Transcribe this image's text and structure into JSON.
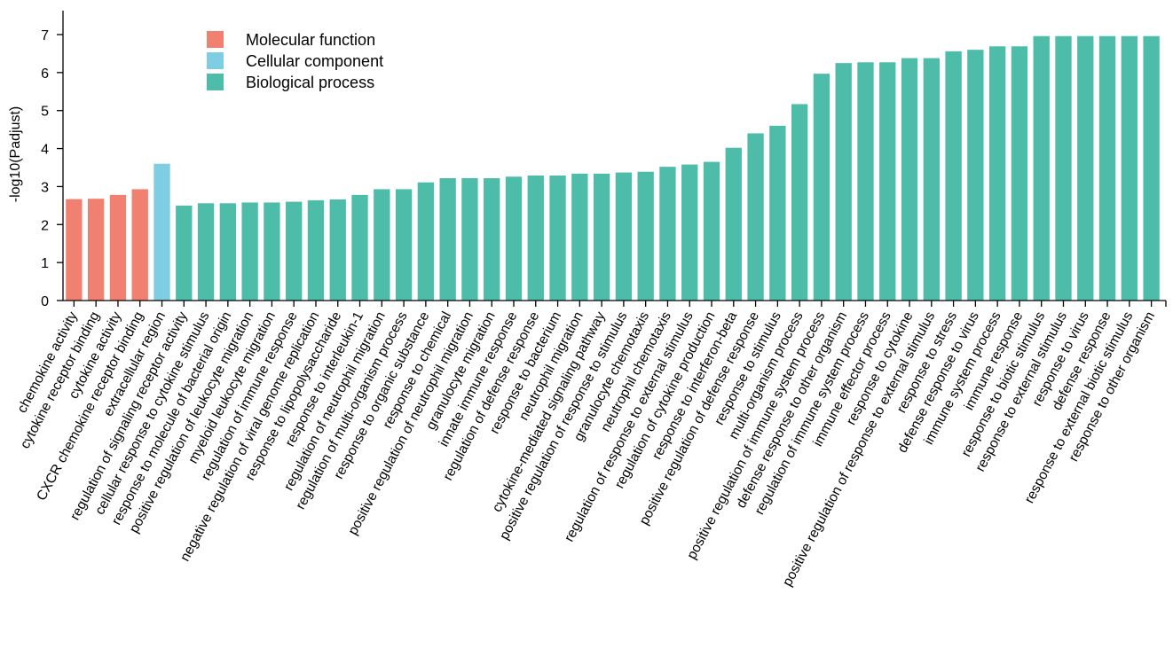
{
  "chart_data": {
    "type": "bar",
    "ylabel": "-log10(Padjust)",
    "xlabel": "",
    "title": "",
    "ylim": [
      0,
      7.5
    ],
    "yticks": [
      0,
      1,
      2,
      3,
      4,
      5,
      6,
      7
    ],
    "grid": false,
    "legend_position": "top-left",
    "legend": [
      {
        "name": "Molecular function",
        "color": "#F08070"
      },
      {
        "name": "Cellular component",
        "color": "#7FCDE3"
      },
      {
        "name": "Biological process",
        "color": "#4DBDAA"
      }
    ],
    "categories": [
      "chemokine activity",
      "cytokine receptor binding",
      "cytokine activity",
      "CXCR chemokine receptor binding",
      "extracellular region",
      "regulation of signaling receptor activity",
      "cellular response to cytokine stimulus",
      "response to molecule of bacterial origin",
      "positive regulation of leukocyte migration",
      "myeloid leukocyte migration",
      "regulation of immune response",
      "negative regulation of viral genome replication",
      "response to lipopolysaccharide",
      "response to interleukin-1",
      "regulation of neutrophil migration",
      "regulation of multi-organism process",
      "response to organic substance",
      "response to chemical",
      "positive regulation of neutrophil migration",
      "granulocyte migration",
      "innate immune response",
      "regulation of defense response",
      "response to bacterium",
      "neutrophil migration",
      "cytokine-mediated signaling pathway",
      "positive regulation of response to stimulus",
      "granulocyte chemotaxis",
      "neutrophil chemotaxis",
      "regulation of response to external stimulus",
      "regulation of cytokine production",
      "response to interferon-beta",
      "positive regulation of defense response",
      "response to stimulus",
      "multi-organism process",
      "positive regulation of immune system process",
      "defense response to other organism",
      "regulation of immune system process",
      "immune effector process",
      "response to cytokine",
      "positive regulation of response to external stimulus",
      "response to stress",
      "defense response to virus",
      "immune system process",
      "immune response",
      "response to biotic stimulus",
      "response to external stimulus",
      "response to virus",
      "defense response",
      "response to external biotic stimulus",
      "response to other organism"
    ],
    "groups": [
      "Molecular function",
      "Molecular function",
      "Molecular function",
      "Molecular function",
      "Cellular component",
      "Biological process",
      "Biological process",
      "Biological process",
      "Biological process",
      "Biological process",
      "Biological process",
      "Biological process",
      "Biological process",
      "Biological process",
      "Biological process",
      "Biological process",
      "Biological process",
      "Biological process",
      "Biological process",
      "Biological process",
      "Biological process",
      "Biological process",
      "Biological process",
      "Biological process",
      "Biological process",
      "Biological process",
      "Biological process",
      "Biological process",
      "Biological process",
      "Biological process",
      "Biological process",
      "Biological process",
      "Biological process",
      "Biological process",
      "Biological process",
      "Biological process",
      "Biological process",
      "Biological process",
      "Biological process",
      "Biological process",
      "Biological process",
      "Biological process",
      "Biological process",
      "Biological process",
      "Biological process",
      "Biological process",
      "Biological process",
      "Biological process",
      "Biological process",
      "Biological process"
    ],
    "values": [
      2.67,
      2.68,
      2.78,
      2.93,
      3.6,
      2.5,
      2.56,
      2.56,
      2.58,
      2.58,
      2.6,
      2.64,
      2.66,
      2.78,
      2.93,
      2.93,
      3.11,
      3.22,
      3.22,
      3.22,
      3.26,
      3.29,
      3.29,
      3.34,
      3.34,
      3.37,
      3.39,
      3.52,
      3.58,
      3.65,
      4.02,
      4.4,
      4.6,
      5.17,
      5.97,
      6.25,
      6.27,
      6.27,
      6.38,
      6.38,
      6.56,
      6.6,
      6.69,
      6.69,
      6.96,
      6.96,
      6.96,
      6.96,
      6.96,
      6.96
    ]
  }
}
